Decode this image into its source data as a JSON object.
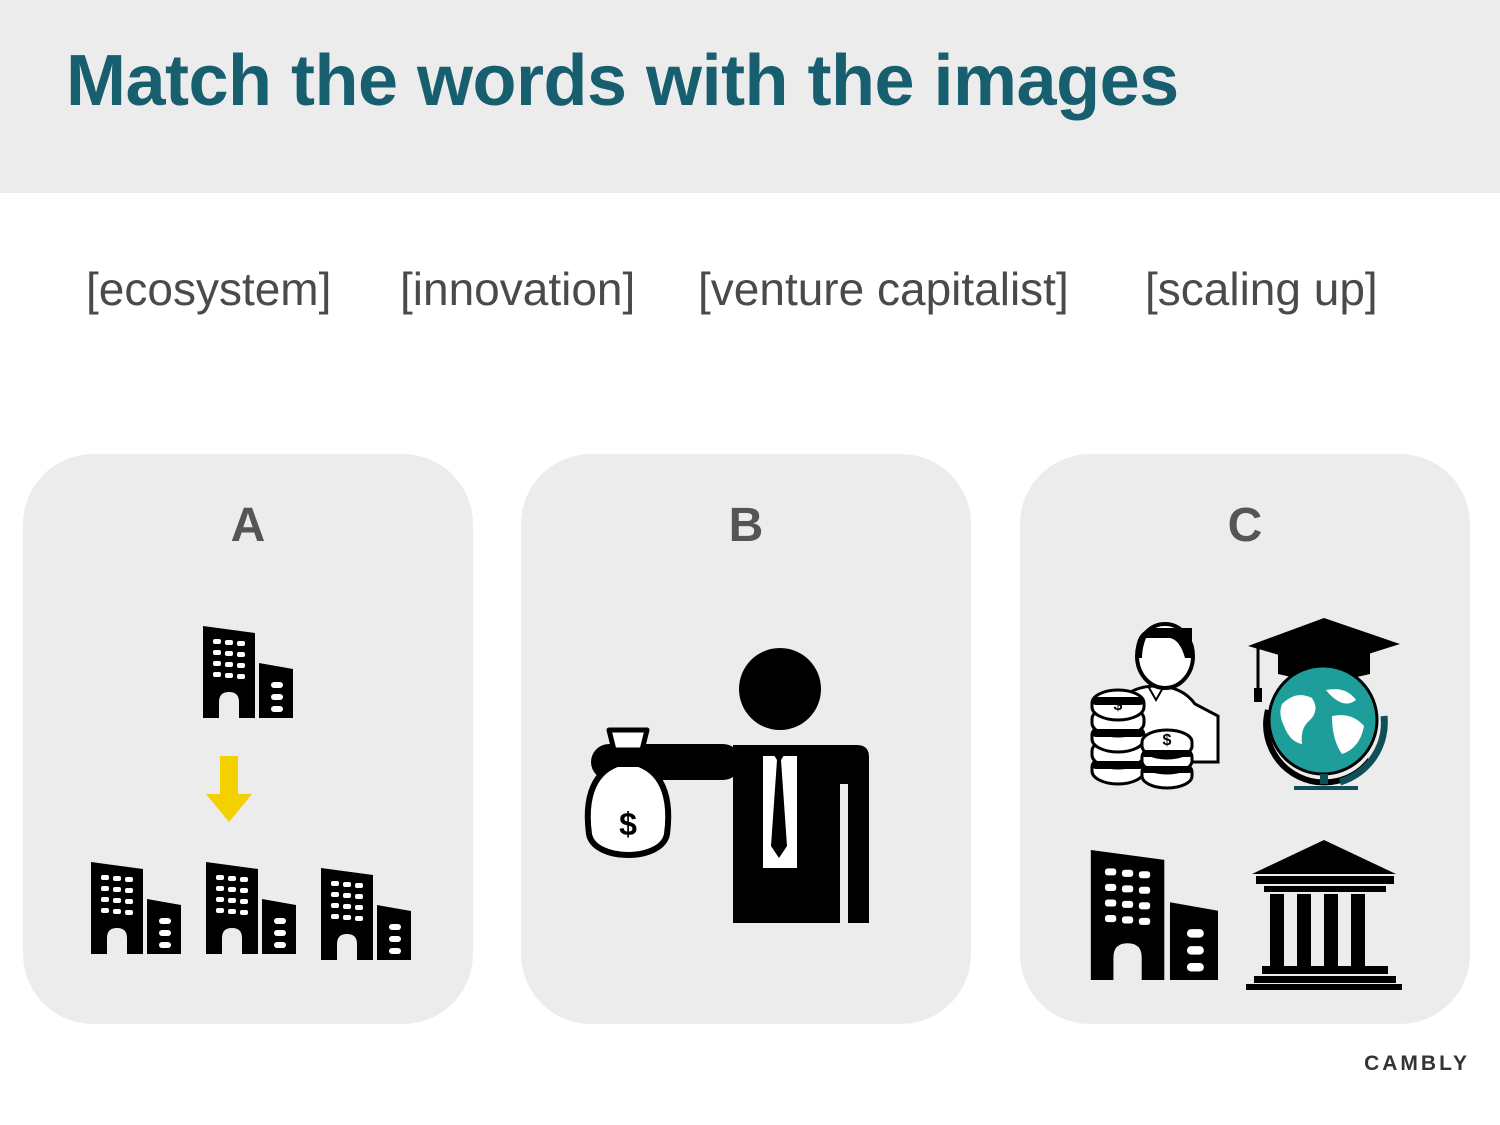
{
  "slide": {
    "title": "Match the words with the images",
    "words": [
      "[ecosystem]",
      "[innovation]",
      "[venture capitalist]",
      "[scaling up]"
    ],
    "cards": [
      {
        "letter": "A",
        "icons": [
          "building-icon",
          "down-arrow-icon",
          "building-icon",
          "building-icon",
          "building-icon"
        ]
      },
      {
        "letter": "B",
        "icons": [
          "businessman-icon",
          "money-bag-icon"
        ]
      },
      {
        "letter": "C",
        "icons": [
          "investor-coins-icon",
          "graduation-globe-icon",
          "building-icon",
          "bank-icon"
        ]
      }
    ],
    "brand": "CAMBLY"
  },
  "colors": {
    "title": "#175e6f",
    "panel": "#ececec",
    "arrow": "#f5d000",
    "globe": "#1e9e9a",
    "icons": "#000000"
  }
}
